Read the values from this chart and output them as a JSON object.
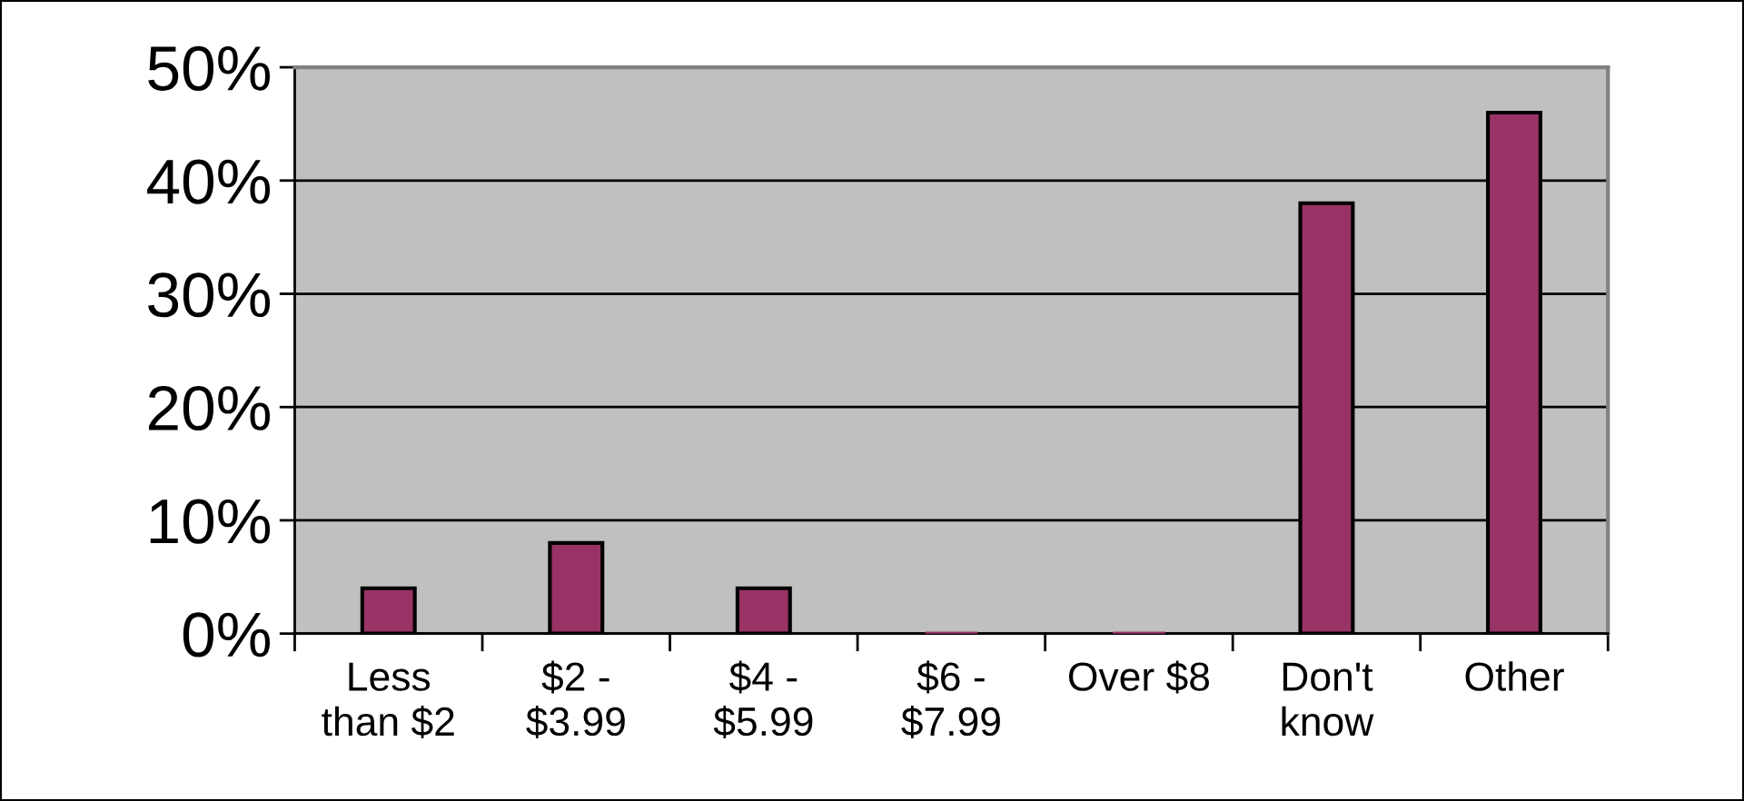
{
  "chart_data": {
    "type": "bar",
    "categories": [
      "Less\nthan $2",
      "$2 -\n$3.99",
      "$4 -\n$5.99",
      "$6 -\n$7.99",
      "Over $8",
      "Don't\nknow",
      "Other"
    ],
    "values": [
      4,
      8,
      4,
      0,
      0,
      38,
      46
    ],
    "color": "#993366",
    "ylim": [
      0,
      50
    ],
    "yticks": [
      {
        "value": 0,
        "label": "0%"
      },
      {
        "value": 10,
        "label": "10%"
      },
      {
        "value": 20,
        "label": "20%"
      },
      {
        "value": 30,
        "label": "30%"
      },
      {
        "value": 40,
        "label": "40%"
      },
      {
        "value": 50,
        "label": "50%"
      }
    ],
    "grid": "y"
  }
}
